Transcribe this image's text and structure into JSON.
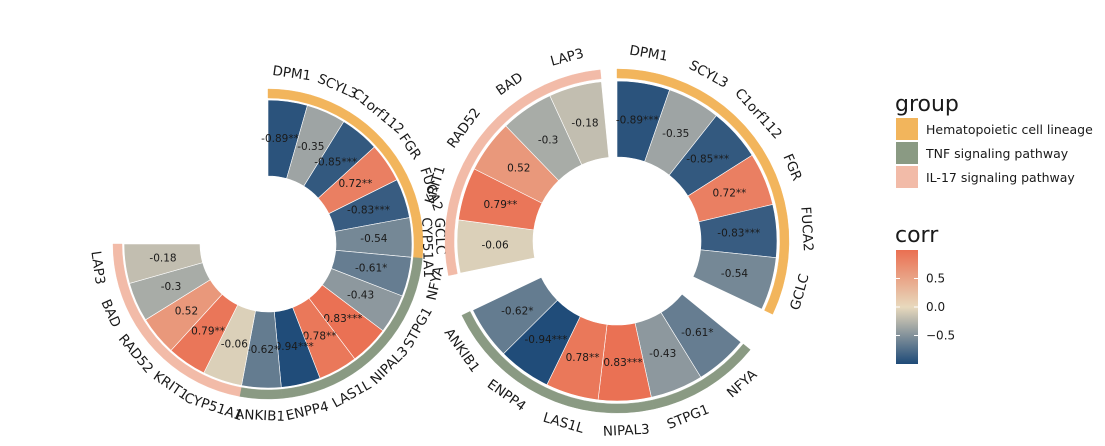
{
  "chart_data": {
    "type": "circular-heatmap",
    "charts": [
      {
        "name": "left-chart",
        "rows": [
          {
            "gene": "DPM1",
            "label": "-0.89***",
            "corr": -0.89,
            "group": "Hematopoietic cell lineage"
          },
          {
            "gene": "SCYL3",
            "label": "-0.35",
            "corr": -0.35,
            "group": "Hematopoietic cell lineage"
          },
          {
            "gene": "C1orf112",
            "label": "-0.85***",
            "corr": -0.85,
            "group": "Hematopoietic cell lineage"
          },
          {
            "gene": "FGR",
            "label": "0.72**",
            "corr": 0.72,
            "group": "Hematopoietic cell lineage"
          },
          {
            "gene": "FUCA2",
            "label": "-0.83***",
            "corr": -0.83,
            "group": "Hematopoietic cell lineage"
          },
          {
            "gene": "GCLC",
            "label": "-0.54",
            "corr": -0.54,
            "group": "Hematopoietic cell lineage"
          },
          {
            "gene": "NFYA",
            "label": "-0.61*",
            "corr": -0.61,
            "group": "TNF signaling pathway"
          },
          {
            "gene": "STPG1",
            "label": "-0.43",
            "corr": -0.43,
            "group": "TNF signaling pathway"
          },
          {
            "gene": "NIPAL3",
            "label": "0.83***",
            "corr": 0.83,
            "group": "TNF signaling pathway"
          },
          {
            "gene": "LAS1L",
            "label": "0.78**",
            "corr": 0.78,
            "group": "TNF signaling pathway"
          },
          {
            "gene": "ENPP4",
            "label": "-0.94***",
            "corr": -0.94,
            "group": "TNF signaling pathway"
          },
          {
            "gene": "ANKIB1",
            "label": "-0.62*",
            "corr": -0.62,
            "group": "TNF signaling pathway"
          },
          {
            "gene": "CYP51A1",
            "label": "-0.06",
            "corr": -0.06,
            "group": "IL-17 signaling pathway"
          },
          {
            "gene": "KRIT1",
            "label": "0.79**",
            "corr": 0.79,
            "group": "IL-17 signaling pathway"
          },
          {
            "gene": "RAD52",
            "label": "0.52",
            "corr": 0.52,
            "group": "IL-17 signaling pathway"
          },
          {
            "gene": "BAD",
            "label": "-0.3",
            "corr": -0.3,
            "group": "IL-17 signaling pathway"
          },
          {
            "gene": "LAP3",
            "label": "-0.18",
            "corr": -0.18,
            "group": "IL-17 signaling pathway"
          }
        ]
      },
      {
        "name": "right-chart",
        "rows": [
          {
            "gene": "DPM1",
            "label": "-0.89***",
            "corr": -0.89,
            "group": "Hematopoietic cell lineage"
          },
          {
            "gene": "SCYL3",
            "label": "-0.35",
            "corr": -0.35,
            "group": "Hematopoietic cell lineage"
          },
          {
            "gene": "C1orf112",
            "label": "-0.85***",
            "corr": -0.85,
            "group": "Hematopoietic cell lineage"
          },
          {
            "gene": "FGR",
            "label": "0.72**",
            "corr": 0.72,
            "group": "Hematopoietic cell lineage"
          },
          {
            "gene": "FUCA2",
            "label": "-0.83***",
            "corr": -0.83,
            "group": "Hematopoietic cell lineage"
          },
          {
            "gene": "GCLC",
            "label": "-0.54",
            "corr": -0.54,
            "group": "Hematopoietic cell lineage"
          },
          {
            "gene": "NFYA",
            "label": "-0.61*",
            "corr": -0.61,
            "group": "TNF signaling pathway"
          },
          {
            "gene": "STPG1",
            "label": "-0.43",
            "corr": -0.43,
            "group": "TNF signaling pathway"
          },
          {
            "gene": "NIPAL3",
            "label": "0.83***",
            "corr": 0.83,
            "group": "TNF signaling pathway"
          },
          {
            "gene": "LAS1L",
            "label": "0.78**",
            "corr": 0.78,
            "group": "TNF signaling pathway"
          },
          {
            "gene": "ENPP4",
            "label": "-0.94***",
            "corr": -0.94,
            "group": "TNF signaling pathway"
          },
          {
            "gene": "ANKIB1",
            "label": "-0.62*",
            "corr": -0.62,
            "group": "TNF signaling pathway"
          },
          {
            "gene": "CYP51A1",
            "label": "-0.06",
            "corr": -0.06,
            "group": "IL-17 signaling pathway"
          },
          {
            "gene": "KRIT1",
            "label": "0.79**",
            "corr": 0.79,
            "group": "IL-17 signaling pathway"
          },
          {
            "gene": "RAD52",
            "label": "0.52",
            "corr": 0.52,
            "group": "IL-17 signaling pathway"
          },
          {
            "gene": "BAD",
            "label": "-0.3",
            "corr": -0.3,
            "group": "IL-17 signaling pathway"
          },
          {
            "gene": "LAP3",
            "label": "-0.18",
            "corr": -0.18,
            "group": "IL-17 signaling pathway"
          }
        ]
      }
    ],
    "legend": {
      "group_title": "group",
      "groups": [
        {
          "name": "Hematopoietic cell lineage",
          "label": "Hematopoietic cell lineage",
          "color": "#f2b55c"
        },
        {
          "name": "TNF signaling pathway",
          "label": "TNF signaling pathway",
          "color": "#8a9a83"
        },
        {
          "name": "IL-17 signaling pathway",
          "label": "IL-17 signaling pathway",
          "color": "#f2bba8"
        }
      ],
      "corr_title": "corr",
      "corr_ticks": [
        {
          "value": 0.5,
          "label": "0.5"
        },
        {
          "value": 0.0,
          "label": "0.0"
        },
        {
          "value": -0.5,
          "label": "−0.5"
        }
      ],
      "corr_range": [
        -1,
        1
      ]
    },
    "colors": {
      "neg": "#1e4a78",
      "mid": "#e8d9bd",
      "pos": "#ea6f51"
    }
  }
}
